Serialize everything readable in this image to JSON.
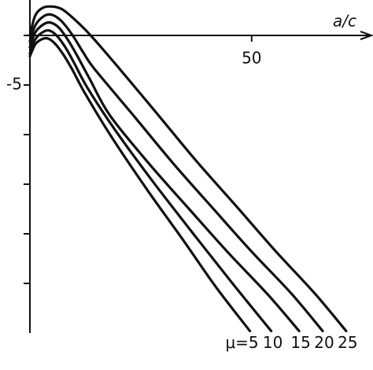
{
  "chart_data": {
    "type": "line",
    "x_label": "a/c",
    "xlim": [
      0,
      77
    ],
    "ylim": [
      -30,
      3.6
    ],
    "xticks": [
      50
    ],
    "yticks": [
      -5
    ],
    "minor_yticks": [
      -10,
      -15,
      -20,
      -25
    ],
    "color": "#111111",
    "series": [
      {
        "name": "μ=5",
        "x": [
          0,
          1.2,
          2.6,
          4.0,
          5.6,
          7.5,
          9.5,
          12.5,
          18.5,
          26.5,
          34.5,
          42.0,
          49.6
        ],
        "values": [
          -2.1,
          -0.9,
          -0.4,
          -0.3,
          -0.8,
          -1.9,
          -3.4,
          -5.9,
          -10.3,
          -15.6,
          -20.6,
          -25.4,
          -29.8
        ]
      },
      {
        "name": "10",
        "x": [
          0,
          1.2,
          2.8,
          4.3,
          6.0,
          8.0,
          10.0,
          13.0,
          19.0,
          27.5,
          36.5,
          45.5,
          54.4
        ],
        "values": [
          -1.8,
          -0.4,
          0.3,
          0.5,
          0.0,
          -1.2,
          -2.8,
          -5.3,
          -9.4,
          -14.6,
          -19.8,
          -24.9,
          -29.8
        ]
      },
      {
        "name": "15",
        "x": [
          0,
          1.2,
          3.0,
          4.6,
          6.5,
          8.5,
          10.6,
          13.5,
          18.1,
          27.0,
          35.9,
          44.7,
          53.6,
          60.7
        ],
        "values": [
          -1.2,
          0.3,
          1.1,
          1.3,
          0.8,
          -0.4,
          -2.0,
          -4.4,
          -8.1,
          -13.0,
          -17.5,
          -21.9,
          -26.1,
          -29.8
        ]
      },
      {
        "name": "20",
        "x": [
          0,
          1.2,
          3.0,
          4.8,
          7.0,
          9.5,
          12.0,
          14.6,
          23.4,
          32.3,
          41.2,
          50.0,
          58.9,
          66.0
        ],
        "values": [
          -0.6,
          1.0,
          1.9,
          2.1,
          1.5,
          0.1,
          -1.7,
          -3.4,
          -8.1,
          -12.9,
          -17.4,
          -21.8,
          -26.0,
          -29.8
        ]
      },
      {
        "name": "25",
        "x": [
          0,
          1.2,
          3.0,
          5.3,
          7.4,
          10.1,
          13.7,
          19.9,
          28.7,
          37.6,
          46.5,
          55.3,
          64.2,
          71.3
        ],
        "values": [
          0,
          2.0,
          2.8,
          2.9,
          2.6,
          1.6,
          0,
          -3.2,
          -7.9,
          -12.7,
          -17.2,
          -21.7,
          -26.0,
          -29.8
        ]
      }
    ]
  }
}
